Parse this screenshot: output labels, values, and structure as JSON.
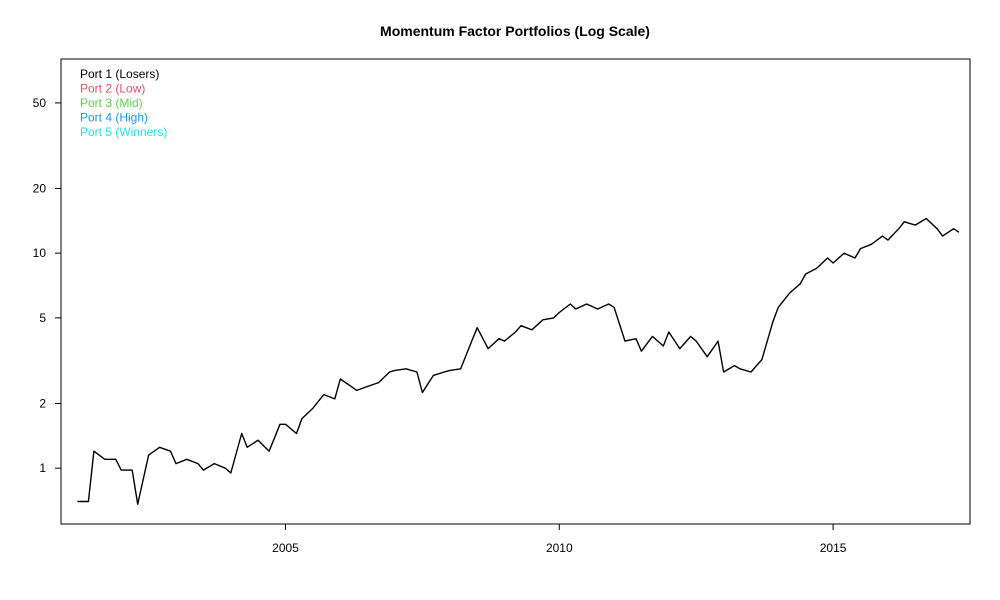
{
  "chart_data": {
    "type": "line",
    "title": "Momentum Factor Portfolios (Log Scale)",
    "xlabel": "",
    "ylabel": "",
    "y_scale": "log",
    "xlim": [
      2000.9,
      2017.5
    ],
    "ylim": [
      0.55,
      80
    ],
    "x_ticks": [
      2005,
      2010,
      2015
    ],
    "y_ticks": [
      1,
      2,
      5,
      10,
      20,
      50
    ],
    "legend_position": "top-left",
    "grid": false,
    "series": [
      {
        "name": "Port 1 (Losers)",
        "color": "#000000",
        "points": [
          [
            2001.2,
            0.7
          ],
          [
            2001.4,
            0.7
          ],
          [
            2001.5,
            1.2
          ],
          [
            2001.7,
            1.1
          ],
          [
            2001.9,
            1.1
          ],
          [
            2002.0,
            0.98
          ],
          [
            2002.2,
            0.98
          ],
          [
            2002.3,
            0.68
          ],
          [
            2002.5,
            1.15
          ],
          [
            2002.7,
            1.25
          ],
          [
            2002.9,
            1.2
          ],
          [
            2003.0,
            1.05
          ],
          [
            2003.2,
            1.1
          ],
          [
            2003.4,
            1.05
          ],
          [
            2003.5,
            0.98
          ],
          [
            2003.7,
            1.05
          ],
          [
            2003.9,
            1.0
          ],
          [
            2004.0,
            0.95
          ],
          [
            2004.2,
            1.45
          ],
          [
            2004.3,
            1.25
          ],
          [
            2004.5,
            1.35
          ],
          [
            2004.7,
            1.2
          ],
          [
            2004.9,
            1.6
          ],
          [
            2005.0,
            1.6
          ],
          [
            2005.2,
            1.45
          ],
          [
            2005.3,
            1.7
          ],
          [
            2005.5,
            1.9
          ],
          [
            2005.7,
            2.2
          ],
          [
            2005.9,
            2.1
          ],
          [
            2006.0,
            2.6
          ],
          [
            2006.2,
            2.4
          ],
          [
            2006.3,
            2.3
          ],
          [
            2006.5,
            2.4
          ],
          [
            2006.7,
            2.5
          ],
          [
            2006.9,
            2.8
          ],
          [
            2007.0,
            2.85
          ],
          [
            2007.2,
            2.9
          ],
          [
            2007.4,
            2.8
          ],
          [
            2007.5,
            2.25
          ],
          [
            2007.7,
            2.7
          ],
          [
            2007.9,
            2.8
          ],
          [
            2008.0,
            2.85
          ],
          [
            2008.2,
            2.9
          ],
          [
            2008.4,
            3.9
          ],
          [
            2008.5,
            4.5
          ],
          [
            2008.7,
            3.6
          ],
          [
            2008.9,
            4.0
          ],
          [
            2009.0,
            3.9
          ],
          [
            2009.2,
            4.3
          ],
          [
            2009.3,
            4.6
          ],
          [
            2009.5,
            4.4
          ],
          [
            2009.7,
            4.9
          ],
          [
            2009.9,
            5.0
          ],
          [
            2010.0,
            5.3
          ],
          [
            2010.2,
            5.8
          ],
          [
            2010.3,
            5.5
          ],
          [
            2010.5,
            5.8
          ],
          [
            2010.7,
            5.5
          ],
          [
            2010.9,
            5.8
          ],
          [
            2011.0,
            5.6
          ],
          [
            2011.2,
            3.9
          ],
          [
            2011.4,
            4.0
          ],
          [
            2011.5,
            3.5
          ],
          [
            2011.7,
            4.1
          ],
          [
            2011.9,
            3.7
          ],
          [
            2012.0,
            4.3
          ],
          [
            2012.2,
            3.6
          ],
          [
            2012.4,
            4.1
          ],
          [
            2012.5,
            3.9
          ],
          [
            2012.7,
            3.3
          ],
          [
            2012.9,
            3.9
          ],
          [
            2013.0,
            2.8
          ],
          [
            2013.2,
            3.0
          ],
          [
            2013.3,
            2.9
          ],
          [
            2013.5,
            2.8
          ],
          [
            2013.7,
            3.2
          ],
          [
            2013.9,
            4.8
          ],
          [
            2014.0,
            5.6
          ],
          [
            2014.2,
            6.5
          ],
          [
            2014.4,
            7.2
          ],
          [
            2014.5,
            8.0
          ],
          [
            2014.7,
            8.5
          ],
          [
            2014.9,
            9.5
          ],
          [
            2015.0,
            9.0
          ],
          [
            2015.2,
            10.0
          ],
          [
            2015.4,
            9.5
          ],
          [
            2015.5,
            10.5
          ],
          [
            2015.7,
            11.0
          ],
          [
            2015.9,
            12.0
          ],
          [
            2016.0,
            11.5
          ],
          [
            2016.2,
            13.0
          ],
          [
            2016.3,
            14.0
          ],
          [
            2016.5,
            13.5
          ],
          [
            2016.7,
            14.5
          ],
          [
            2016.9,
            13.0
          ],
          [
            2017.0,
            12.0
          ],
          [
            2017.2,
            13.0
          ],
          [
            2017.3,
            12.5
          ]
        ]
      }
    ]
  },
  "legend": [
    {
      "name": "Port 1 (Losers)",
      "color": "#000000"
    },
    {
      "name": "Port 2 (Low)",
      "color": "#DF536B"
    },
    {
      "name": "Port 3 (Mid)",
      "color": "#61D04F"
    },
    {
      "name": "Port 4 (High)",
      "color": "#2297E6"
    },
    {
      "name": "Port 5 (Winners)",
      "color": "#28E2E5"
    }
  ]
}
